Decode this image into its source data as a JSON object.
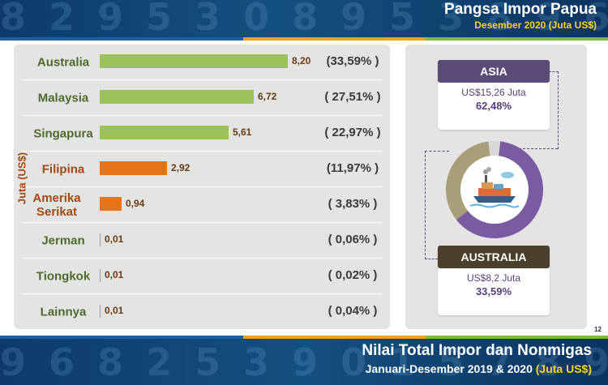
{
  "header": {
    "title": "Pangsa Impor Papua",
    "subtitle": "Desember 2020 (Juta US$)"
  },
  "footer": {
    "title": "Nilai Total Impor dan Nonmigas",
    "subtitle_main": "Januari-Desember 2019 & 2020",
    "subtitle_unit": "(Juta US$)",
    "page_number": "12"
  },
  "chart_data": {
    "type": "bar",
    "orientation": "horizontal",
    "ylabel": "Juta (US$)",
    "categories": [
      "Australia",
      "Malaysia",
      "Singapura",
      "Filipina",
      "Amerika Serikat",
      "Jerman",
      "Tiongkok",
      "Lainnya"
    ],
    "values": [
      8.2,
      6.72,
      5.61,
      2.92,
      0.94,
      0.01,
      0.01,
      0.01
    ],
    "value_labels": [
      "8,20",
      "6,72",
      "5,61",
      "2,92",
      "0,94",
      "0,01",
      "0,01",
      "0,01"
    ],
    "shares": [
      "(33,59% )",
      "( 27,51% )",
      "( 22,97% )",
      "(11,97% )",
      "( 3,83% )",
      "( 0,06% )",
      "( 0,02% )",
      "( 0,04% )"
    ],
    "bar_colors": [
      "#9bc15a",
      "#9bc15a",
      "#9bc15a",
      "#e87318",
      "#e87318",
      "#9a9a9a",
      "#9a9a9a",
      "#9a9a9a"
    ],
    "label_colors": [
      "#4d6b2a",
      "#4d6b2a",
      "#4d6b2a",
      "#a14a10",
      "#a14a10",
      "#4d6b2a",
      "#4d6b2a",
      "#4d6b2a"
    ],
    "xlim": [
      0,
      10
    ]
  },
  "region_cards": [
    {
      "name": "ASIA",
      "value": "US$15,26 Juta",
      "share": "62,48%",
      "color": "#5a4b78"
    },
    {
      "name": "AUSTRALIA",
      "value": "US$8,2 Juta",
      "share": "33,59%",
      "color": "#4a3f2a"
    }
  ],
  "donut": {
    "segments": [
      {
        "name": "ASIA",
        "share": 62.48,
        "color": "#7a5aa0"
      },
      {
        "name": "AUSTRALIA",
        "share": 33.59,
        "color": "#a89e78"
      },
      {
        "name": "Lainnya",
        "share": 3.93,
        "color": "#d8d8d8"
      }
    ],
    "center_icon": "cargo-ship-icon"
  }
}
